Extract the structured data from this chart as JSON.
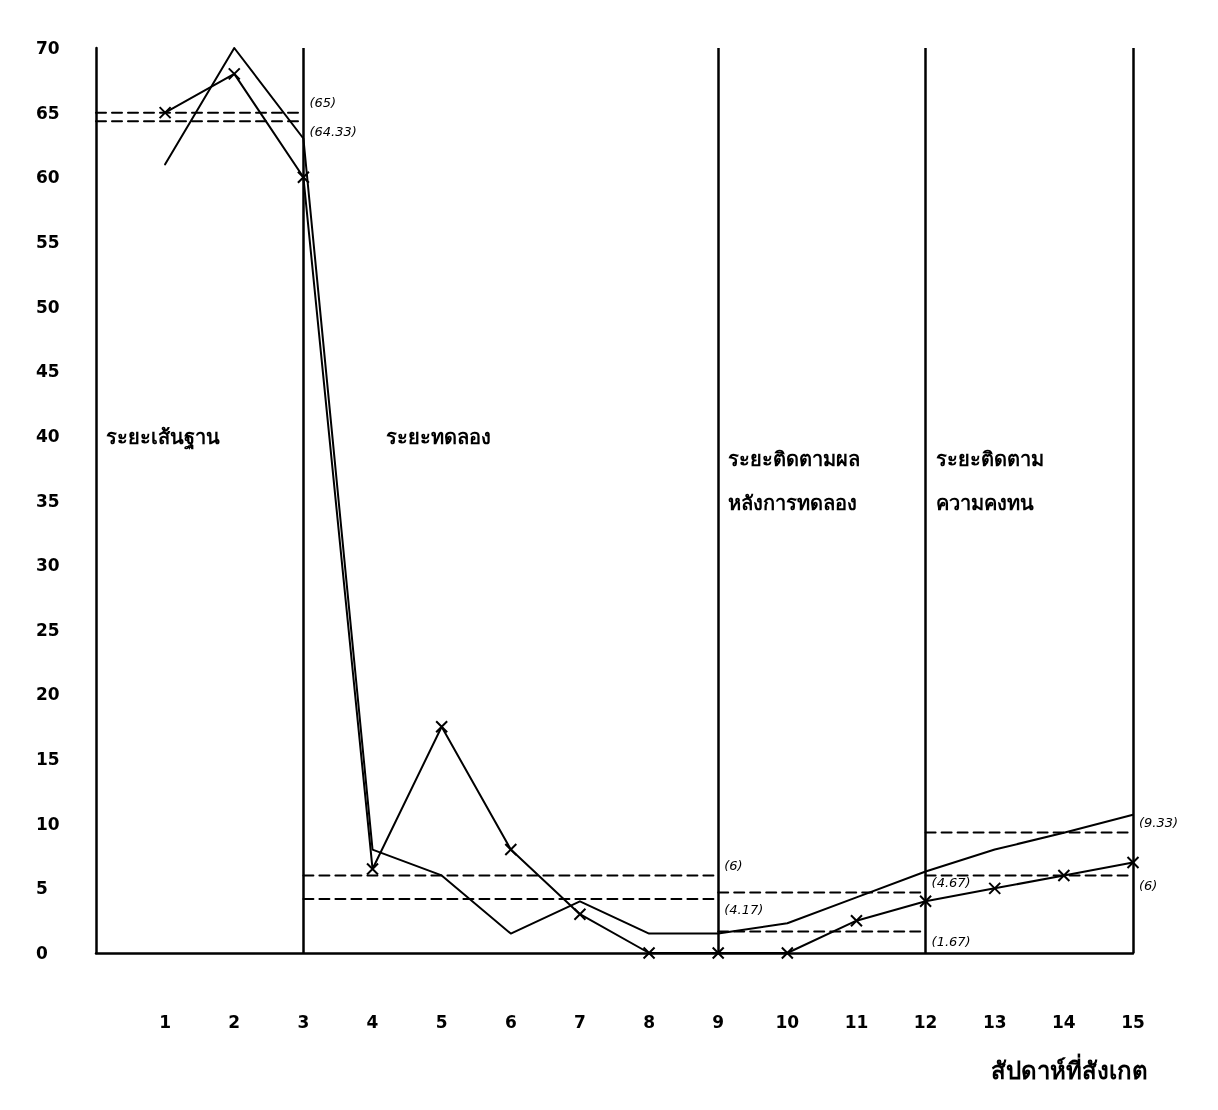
{
  "chart_data": {
    "type": "line",
    "xlabel": "สัปดาห์ที่สังเกต",
    "x": [
      1,
      2,
      3,
      4,
      5,
      6,
      7,
      8,
      9,
      10,
      11,
      12,
      13,
      14,
      15
    ],
    "xlim": [
      0,
      15
    ],
    "xticks": [
      1,
      2,
      3,
      4,
      5,
      6,
      7,
      8,
      9,
      10,
      11,
      12,
      13,
      14,
      15
    ],
    "ylim": [
      0,
      70
    ],
    "yticks": [
      0,
      5,
      10,
      15,
      20,
      25,
      30,
      35,
      40,
      45,
      50,
      55,
      60,
      65,
      70
    ],
    "grid": false,
    "line_style": "solid",
    "series": [
      {
        "color": "#000000",
        "marker": "cross",
        "values": [
          65,
          68,
          60,
          6.5,
          17.5,
          8,
          3,
          0,
          0,
          0,
          2.5,
          4,
          5,
          6,
          7
        ]
      },
      {
        "color": "#000000",
        "marker": "none",
        "values": [
          61,
          70,
          63,
          8,
          6,
          1.5,
          4,
          1.5,
          1.5,
          2.3,
          4.3,
          6.3,
          8,
          9.3,
          10.7
        ]
      },
      {
        "type": "line",
        "color": "#000000",
        "marker": "none",
        "line_style": "dashed",
        "x": [
          0,
          3
        ],
        "values": [
          65,
          65
        ]
      },
      {
        "type": "line",
        "color": "#000000",
        "marker": "none",
        "line_style": "dashed",
        "x": [
          0,
          3
        ],
        "values": [
          64.33,
          64.33
        ]
      },
      {
        "type": "line",
        "color": "#000000",
        "marker": "none",
        "line_style": "dashed",
        "x": [
          3,
          9
        ],
        "values": [
          6,
          6
        ]
      },
      {
        "type": "line",
        "color": "#000000",
        "marker": "none",
        "line_style": "dashed",
        "x": [
          3,
          9
        ],
        "values": [
          4.17,
          4.17
        ]
      },
      {
        "type": "line",
        "color": "#000000",
        "marker": "none",
        "line_style": "dashed",
        "x": [
          9,
          12
        ],
        "values": [
          4.67,
          4.67
        ]
      },
      {
        "type": "line",
        "color": "#000000",
        "marker": "none",
        "line_style": "dashed",
        "x": [
          9,
          12
        ],
        "values": [
          1.67,
          1.67
        ]
      },
      {
        "type": "line",
        "color": "#000000",
        "marker": "none",
        "line_style": "dashed",
        "x": [
          12,
          15
        ],
        "values": [
          9.33,
          9.33
        ]
      },
      {
        "type": "line",
        "color": "#000000",
        "marker": "none",
        "line_style": "dashed",
        "x": [
          12,
          15
        ],
        "values": [
          6,
          6
        ]
      }
    ],
    "ref_lines": [
      {
        "axis": "x",
        "value": 3,
        "color": "#000000",
        "line_style": "solid"
      },
      {
        "axis": "x",
        "value": 9,
        "color": "#000000",
        "line_style": "solid"
      },
      {
        "axis": "x",
        "value": 12,
        "color": "#000000",
        "line_style": "solid"
      },
      {
        "axis": "x",
        "value": 15,
        "color": "#000000",
        "line_style": "solid"
      }
    ],
    "annotations": [
      "ระยะเส้นฐาน",
      "ระยะทดลอง",
      "ระยะติดตามผล\nหลังการทดลอง",
      "ระยะติดตาม\nความคงทน",
      {
        "text": "(65)",
        "x": 3,
        "y": 65
      },
      {
        "text": "(64.33)",
        "x": 3,
        "y": 64.33
      },
      {
        "text": "(6)",
        "x": 9,
        "y": 6
      },
      {
        "text": "(4.17)",
        "x": 9,
        "y": 4.17
      },
      {
        "text": "(4.67)",
        "x": 12,
        "y": 4.67
      },
      {
        "text": "(1.67)",
        "x": 12,
        "y": 1.67
      },
      {
        "text": "(9.33)",
        "x": 15,
        "y": 9.33
      },
      {
        "text": "(6)",
        "x": 15,
        "y": 6
      }
    ]
  }
}
